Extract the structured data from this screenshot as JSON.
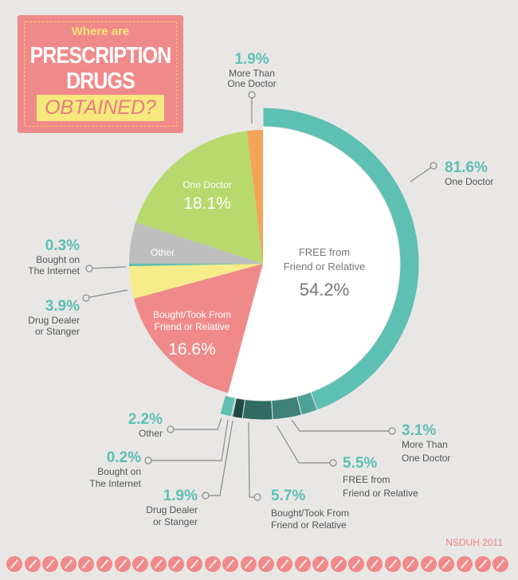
{
  "title": {
    "line1": "Where are",
    "line2": "PRESCRIPTION",
    "line3": "DRUGS",
    "line4": "OBTAINED?"
  },
  "source": "NSDUH 2011",
  "colors": {
    "background": "#e8e7e5",
    "teal_outer": "#5ebfb3",
    "dark_teal_1": "#2f6b60",
    "dark_teal_2": "#1f4a42",
    "dark_teal_3": "#25564d",
    "white_slice": "#ffffff",
    "green": "#b7d96d",
    "orange": "#f4a35a",
    "gray": "#bebebe",
    "yellow": "#f6ed8a",
    "pink": "#f08a8a",
    "label_teal": "#5ebfb3",
    "label_gray": "#555555"
  },
  "chart_data": {
    "type": "pie",
    "title": "Where are Prescription Drugs Obtained?",
    "inner": [
      {
        "label": "FREE from Friend or Relative",
        "value": 54.2
      },
      {
        "label": "Bought/Took From Friend or Relative",
        "value": 16.6
      },
      {
        "label": "Drug Dealer or Stanger",
        "value": 3.9
      },
      {
        "label": "Bought on The Internet",
        "value": 0.3
      },
      {
        "label": "Other",
        "value": 5.0
      },
      {
        "label": "One Doctor",
        "value": 18.1
      },
      {
        "label": "More Than One Doctor",
        "value": 1.9
      }
    ],
    "outer_ring": [
      {
        "label": "One Doctor",
        "value": 81.6
      },
      {
        "label": "More Than One Doctor",
        "value": 3.1
      },
      {
        "label": "FREE from Friend or Relative",
        "value": 5.5
      },
      {
        "label": "Bought/Took From Friend or Relative",
        "value": 5.7
      },
      {
        "label": "Drug Dealer or Stanger",
        "value": 1.9
      },
      {
        "label": "Bought on The Internet",
        "value": 0.2
      },
      {
        "label": "Other",
        "value": 2.2
      }
    ],
    "labels": {
      "more_than_one_doctor_inner": {
        "pct": "1.9%",
        "l1": "More Than",
        "l2": "One Doctor"
      },
      "one_doctor_outer": {
        "pct": "81.6%",
        "l1": "One Doctor"
      },
      "internet_inner": {
        "pct": "0.3%",
        "l1": "Bought on",
        "l2": "The Internet"
      },
      "dealer_inner": {
        "pct": "3.9%",
        "l1": "Drug Dealer",
        "l2": "or Stanger"
      },
      "other_outer": {
        "pct": "2.2%",
        "l1": "Other"
      },
      "internet_outer": {
        "pct": "0.2%",
        "l1": "Bought on",
        "l2": "The Internet"
      },
      "dealer_outer": {
        "pct": "1.9%",
        "l1": "Drug Dealer",
        "l2": "or Stanger"
      },
      "bought_outer": {
        "pct": "5.7%",
        "l1": "Bought/Took From",
        "l2": "Friend or Relative"
      },
      "free_outer": {
        "pct": "5.5%",
        "l1": "FREE from",
        "l2": "Friend or Relative"
      },
      "more_outer": {
        "pct": "3.1%",
        "l1": "More Than",
        "l2": "One Doctor"
      }
    },
    "inside_labels": {
      "free": {
        "l1": "FREE from",
        "l2": "Friend or Relative",
        "pct": "54.2%"
      },
      "one_doctor": {
        "l1": "One Doctor",
        "pct": "18.1%"
      },
      "other": {
        "l1": "Other"
      },
      "bought": {
        "l1": "Bought/Took From",
        "l2": "Friend or Relative",
        "pct": "16.6%"
      }
    }
  }
}
